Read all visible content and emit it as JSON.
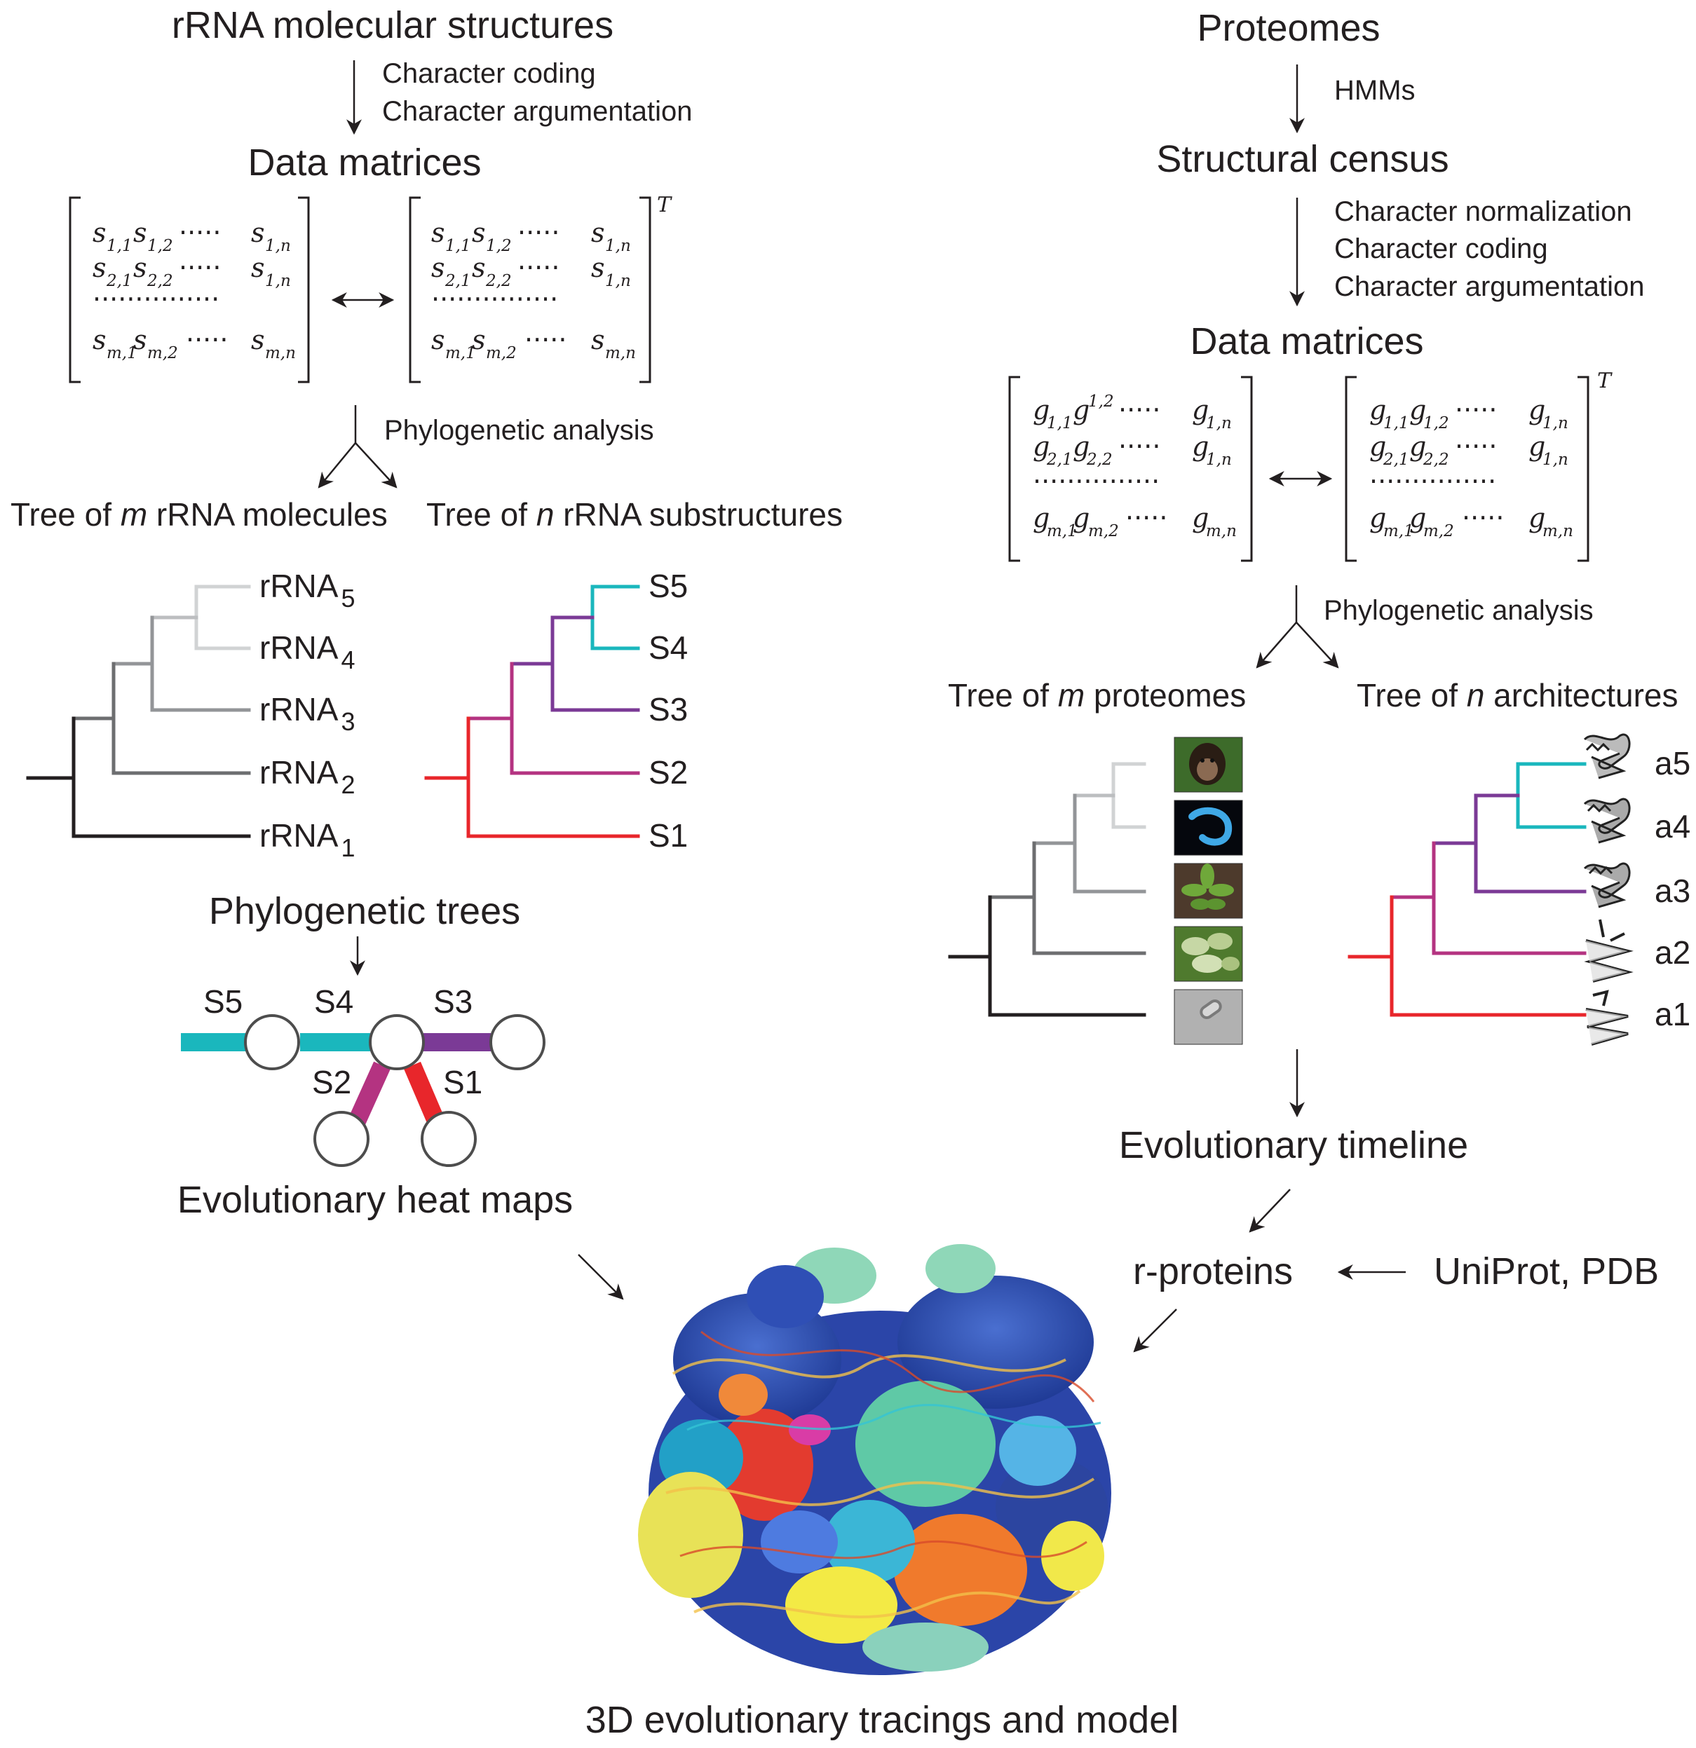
{
  "left": {
    "title": "rRNA molecular structures",
    "step1": [
      "Character coding",
      "Character argumentation"
    ],
    "data_matrices_title": "Data matrices",
    "matrix": {
      "symbol": "s",
      "row1": [
        "1,1",
        "1,2",
        "1,n"
      ],
      "row2": [
        "2,1",
        "2,2",
        "1,n"
      ],
      "row3": [
        "m,1",
        "m,2",
        "m,n"
      ],
      "transpose": "T"
    },
    "analysis": "Phylogenetic analysis",
    "tree_left_title": [
      "Tree of ",
      "m",
      " rRNA molecules"
    ],
    "tree_right_title": [
      "Tree of ",
      "n",
      " rRNA substructures"
    ],
    "rrna_leaves": [
      {
        "name": "rRNA",
        "sub": "5"
      },
      {
        "name": "rRNA",
        "sub": "4"
      },
      {
        "name": "rRNA",
        "sub": "3"
      },
      {
        "name": "rRNA",
        "sub": "2"
      },
      {
        "name": "rRNA",
        "sub": "1"
      }
    ],
    "sub_leaves": [
      "S5",
      "S4",
      "S3",
      "S2",
      "S1"
    ],
    "phylo_trees": "Phylogenetic trees",
    "heatmap_labels": [
      "S5",
      "S4",
      "S3",
      "S2",
      "S1"
    ],
    "heatmap_title": "Evolutionary heat maps"
  },
  "right": {
    "title": "Proteomes",
    "hmm": "HMMs",
    "census": "Structural census",
    "steps": [
      "Character normalization",
      "Character coding",
      "Character argumentation"
    ],
    "data_matrices_title": "Data matrices",
    "matrix": {
      "symbol": "g",
      "row1": [
        "1,1",
        "1,2",
        "1,n"
      ],
      "row2": [
        "2,1",
        "2,2",
        "1,n"
      ],
      "row3": [
        "m,1",
        "m,2",
        "m,n"
      ],
      "transpose": "T"
    },
    "analysis": "Phylogenetic analysis",
    "tree_left_title": [
      "Tree of ",
      "m",
      " proteomes"
    ],
    "tree_right_title": [
      "Tree of ",
      "n",
      " architectures"
    ],
    "arch_leaves": [
      "a5",
      "a4",
      "a3",
      "a2",
      "a1"
    ],
    "timeline": "Evolutionary timeline",
    "rproteins": "r-proteins",
    "databases": "UniProt, PDB"
  },
  "bottom_title": "3D evolutionary tracings and model",
  "colors": {
    "cyan": "#1ab7bd",
    "purple": "#7b3a96",
    "magenta": "#b43381",
    "red": "#e8262b",
    "gray_dark": "#231f20",
    "gray_mid": "#6d6e70",
    "gray_light": "#939598",
    "gray_lighter": "#bcbec0",
    "gray_lightest": "#d1d3d4"
  }
}
